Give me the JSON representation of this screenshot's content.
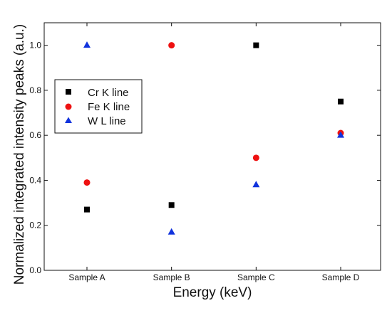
{
  "chart_data": {
    "type": "scatter",
    "xlabel": "Energy (keV)",
    "ylabel": "Normalized integrated intensity peaks (a.u.)",
    "categories": [
      "Sample A",
      "Sample B",
      "Sample C",
      "Sample D"
    ],
    "ylim": [
      0,
      1.1
    ],
    "yticks": [
      0.0,
      0.2,
      0.4,
      0.6,
      0.8,
      1.0
    ],
    "ytick_labels": [
      "0.0",
      "0.2",
      "0.4",
      "0.6",
      "0.8",
      "1.0"
    ],
    "grid": false,
    "legend_position": "left",
    "series": [
      {
        "name": "Cr K line",
        "marker": "square",
        "color": "#000000",
        "values": [
          0.27,
          0.29,
          1.0,
          0.75
        ]
      },
      {
        "name": "Fe K line",
        "marker": "circle",
        "color": "#ee1111",
        "values": [
          0.39,
          1.0,
          0.5,
          0.61
        ]
      },
      {
        "name": "W L line",
        "marker": "triangle",
        "color": "#1133dd",
        "values": [
          1.0,
          0.17,
          0.38,
          0.6
        ]
      }
    ]
  }
}
